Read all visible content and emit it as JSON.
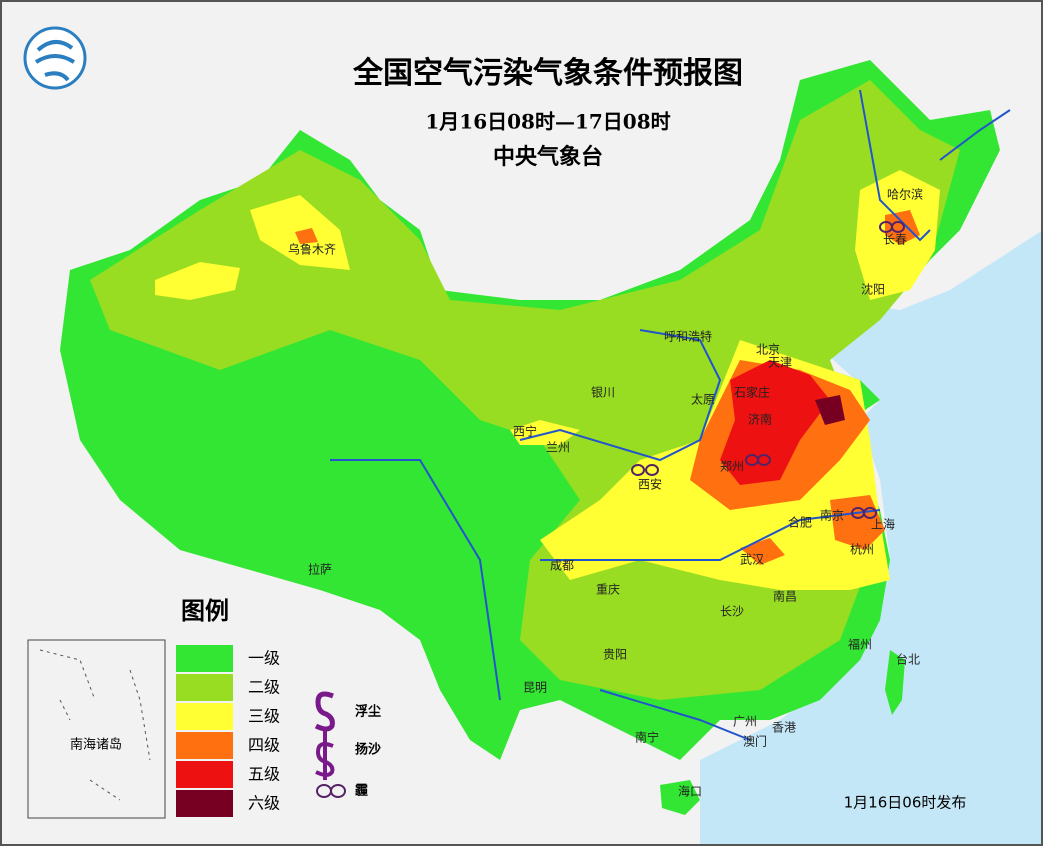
{
  "header": {
    "title": "全国空气污染气象条件预报图",
    "subtitle": "1月16日08时—17日08时",
    "issuer": "中央气象台"
  },
  "legend": {
    "title": "图例",
    "levels": [
      {
        "label": "一级",
        "color": "#33e633"
      },
      {
        "label": "二级",
        "color": "#99dd22"
      },
      {
        "label": "三级",
        "color": "#ffff33"
      },
      {
        "label": "四级",
        "color": "#ff7011"
      },
      {
        "label": "五级",
        "color": "#ee1111"
      },
      {
        "label": "六级",
        "color": "#770022"
      }
    ],
    "symbols": [
      {
        "label": "浮尘"
      },
      {
        "label": "扬沙"
      },
      {
        "label": "霾"
      }
    ]
  },
  "cities": [
    "乌鲁木齐",
    "哈尔滨",
    "长春",
    "沈阳",
    "呼和浩特",
    "北京",
    "天津",
    "石家庄",
    "济南",
    "太原",
    "银川",
    "西宁",
    "兰州",
    "西安",
    "郑州",
    "合肥",
    "南京",
    "上海",
    "杭州",
    "武汉",
    "成都",
    "重庆",
    "拉萨",
    "长沙",
    "南昌",
    "贵阳",
    "福州",
    "台北",
    "昆明",
    "南宁",
    "广州",
    "香港",
    "澳门",
    "海口"
  ],
  "inset": {
    "label": "南海诸岛"
  },
  "footer": {
    "issued": "1月16日06时发布"
  }
}
